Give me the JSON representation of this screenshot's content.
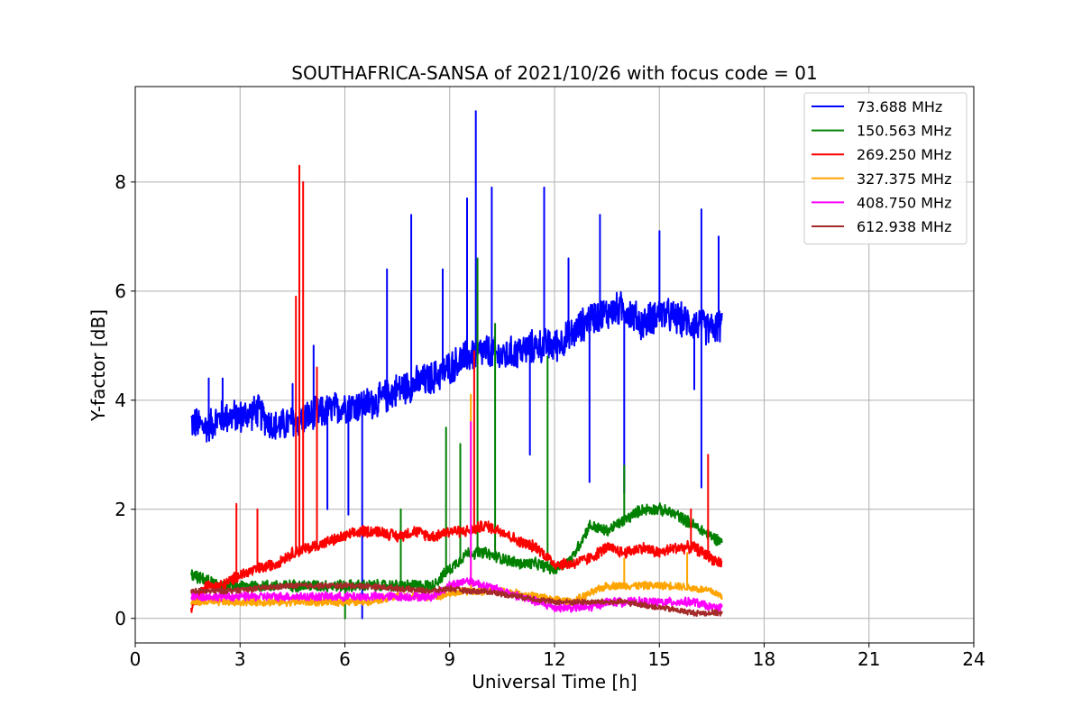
{
  "chart_data": {
    "type": "line",
    "title": "SOUTHAFRICA-SANSA of 2021/10/26 with focus code = 01",
    "xlabel": "Universal Time [h]",
    "ylabel": "Y-factor [dB]",
    "xlim": [
      0,
      24
    ],
    "ylim": [
      -0.45,
      9.75
    ],
    "xticks": [
      0,
      3,
      6,
      9,
      12,
      15,
      18,
      21,
      24
    ],
    "yticks": [
      0,
      2,
      4,
      6,
      8
    ],
    "grid": true,
    "legend_position": "top-right",
    "series": [
      {
        "name": "  73.688 MHz",
        "color": "#0000ff",
        "points": [
          [
            1.6,
            3.6
          ],
          [
            2.0,
            3.5
          ],
          [
            2.5,
            3.7
          ],
          [
            3.0,
            3.7
          ],
          [
            3.5,
            3.8
          ],
          [
            4.0,
            3.5
          ],
          [
            4.5,
            3.6
          ],
          [
            5.0,
            3.7
          ],
          [
            5.5,
            3.8
          ],
          [
            6.0,
            3.9
          ],
          [
            6.5,
            3.9
          ],
          [
            7.0,
            4.0
          ],
          [
            7.5,
            4.2
          ],
          [
            8.0,
            4.3
          ],
          [
            8.5,
            4.4
          ],
          [
            9.0,
            4.6
          ],
          [
            9.5,
            4.8
          ],
          [
            10.0,
            4.9
          ],
          [
            10.5,
            4.8
          ],
          [
            11.0,
            4.9
          ],
          [
            11.5,
            5.0
          ],
          [
            12.0,
            5.0
          ],
          [
            12.5,
            5.2
          ],
          [
            13.0,
            5.5
          ],
          [
            13.5,
            5.6
          ],
          [
            14.0,
            5.7
          ],
          [
            14.5,
            5.4
          ],
          [
            15.0,
            5.6
          ],
          [
            15.5,
            5.5
          ],
          [
            16.0,
            5.4
          ],
          [
            16.5,
            5.3
          ],
          [
            16.8,
            5.4
          ]
        ],
        "spikes": [
          [
            2.1,
            4.4
          ],
          [
            2.5,
            4.4
          ],
          [
            4.5,
            4.3
          ],
          [
            5.1,
            5.0
          ],
          [
            5.5,
            2.0
          ],
          [
            6.1,
            1.9
          ],
          [
            6.5,
            0.0
          ],
          [
            7.2,
            6.4
          ],
          [
            7.9,
            7.4
          ],
          [
            8.8,
            6.4
          ],
          [
            9.5,
            7.7
          ],
          [
            9.75,
            9.3
          ],
          [
            10.2,
            7.9
          ],
          [
            11.3,
            3.0
          ],
          [
            11.7,
            7.9
          ],
          [
            12.4,
            6.6
          ],
          [
            13.0,
            2.5
          ],
          [
            13.3,
            7.4
          ],
          [
            14.0,
            2.3
          ],
          [
            15.0,
            7.1
          ],
          [
            16.0,
            4.2
          ],
          [
            16.2,
            7.5
          ],
          [
            16.2,
            2.4
          ],
          [
            16.7,
            7.0
          ]
        ]
      },
      {
        "name": "150.563 MHz",
        "color": "#008000",
        "points": [
          [
            1.6,
            0.8
          ],
          [
            2.0,
            0.7
          ],
          [
            2.5,
            0.6
          ],
          [
            3.0,
            0.6
          ],
          [
            3.5,
            0.6
          ],
          [
            4.0,
            0.6
          ],
          [
            4.5,
            0.6
          ],
          [
            5.0,
            0.6
          ],
          [
            5.5,
            0.6
          ],
          [
            6.0,
            0.6
          ],
          [
            6.5,
            0.6
          ],
          [
            7.0,
            0.6
          ],
          [
            7.5,
            0.6
          ],
          [
            8.0,
            0.6
          ],
          [
            8.5,
            0.6
          ],
          [
            9.0,
            0.9
          ],
          [
            9.5,
            1.2
          ],
          [
            10.0,
            1.2
          ],
          [
            10.5,
            1.1
          ],
          [
            11.0,
            1.0
          ],
          [
            11.5,
            1.0
          ],
          [
            12.0,
            0.9
          ],
          [
            12.5,
            1.1
          ],
          [
            13.0,
            1.7
          ],
          [
            13.5,
            1.6
          ],
          [
            14.0,
            1.8
          ],
          [
            14.5,
            2.0
          ],
          [
            15.0,
            2.0
          ],
          [
            15.5,
            1.9
          ],
          [
            16.0,
            1.7
          ],
          [
            16.5,
            1.5
          ],
          [
            16.8,
            1.4
          ]
        ],
        "spikes": [
          [
            6.0,
            0.0
          ],
          [
            7.6,
            2.0
          ],
          [
            8.9,
            3.5
          ],
          [
            9.3,
            3.2
          ],
          [
            9.8,
            6.6
          ],
          [
            10.3,
            5.4
          ],
          [
            11.8,
            4.8
          ],
          [
            14.0,
            2.8
          ]
        ]
      },
      {
        "name": "269.250 MHz",
        "color": "#ff0000",
        "points": [
          [
            1.6,
            0.2
          ],
          [
            2.0,
            0.6
          ],
          [
            2.5,
            0.6
          ],
          [
            3.0,
            0.8
          ],
          [
            3.5,
            0.9
          ],
          [
            4.0,
            1.0
          ],
          [
            4.5,
            1.2
          ],
          [
            5.0,
            1.3
          ],
          [
            5.5,
            1.4
          ],
          [
            6.0,
            1.5
          ],
          [
            6.5,
            1.6
          ],
          [
            7.0,
            1.6
          ],
          [
            7.5,
            1.5
          ],
          [
            8.0,
            1.6
          ],
          [
            8.5,
            1.5
          ],
          [
            9.0,
            1.6
          ],
          [
            9.5,
            1.6
          ],
          [
            10.0,
            1.7
          ],
          [
            10.5,
            1.6
          ],
          [
            11.0,
            1.4
          ],
          [
            11.5,
            1.3
          ],
          [
            12.0,
            1.0
          ],
          [
            12.5,
            1.0
          ],
          [
            13.0,
            1.1
          ],
          [
            13.5,
            1.3
          ],
          [
            14.0,
            1.2
          ],
          [
            14.5,
            1.3
          ],
          [
            15.0,
            1.2
          ],
          [
            15.5,
            1.3
          ],
          [
            16.0,
            1.3
          ],
          [
            16.5,
            1.1
          ],
          [
            16.8,
            1.0
          ]
        ],
        "spikes": [
          [
            2.9,
            2.1
          ],
          [
            3.5,
            2.0
          ],
          [
            4.6,
            5.9
          ],
          [
            4.7,
            8.3
          ],
          [
            4.8,
            8.0
          ],
          [
            5.2,
            4.6
          ],
          [
            9.7,
            4.9
          ],
          [
            15.9,
            2.0
          ],
          [
            16.4,
            3.0
          ]
        ]
      },
      {
        "name": "327.375 MHz",
        "color": "#ffa500",
        "points": [
          [
            1.6,
            0.3
          ],
          [
            2.5,
            0.3
          ],
          [
            3.5,
            0.3
          ],
          [
            4.5,
            0.3
          ],
          [
            5.5,
            0.3
          ],
          [
            6.5,
            0.3
          ],
          [
            7.5,
            0.4
          ],
          [
            8.5,
            0.4
          ],
          [
            9.5,
            0.5
          ],
          [
            10.5,
            0.5
          ],
          [
            11.5,
            0.4
          ],
          [
            12.5,
            0.3
          ],
          [
            13.5,
            0.6
          ],
          [
            14.5,
            0.6
          ],
          [
            15.5,
            0.6
          ],
          [
            16.5,
            0.5
          ],
          [
            16.8,
            0.4
          ]
        ],
        "spikes": [
          [
            9.6,
            4.1
          ],
          [
            14.0,
            1.1
          ],
          [
            15.8,
            1.2
          ]
        ]
      },
      {
        "name": "408.750 MHz",
        "color": "#ff00ff",
        "points": [
          [
            1.6,
            0.4
          ],
          [
            2.5,
            0.4
          ],
          [
            3.5,
            0.4
          ],
          [
            4.5,
            0.4
          ],
          [
            5.5,
            0.4
          ],
          [
            6.5,
            0.4
          ],
          [
            7.5,
            0.4
          ],
          [
            8.5,
            0.4
          ],
          [
            9.0,
            0.6
          ],
          [
            9.5,
            0.7
          ],
          [
            10.0,
            0.6
          ],
          [
            10.5,
            0.5
          ],
          [
            11.0,
            0.4
          ],
          [
            11.5,
            0.3
          ],
          [
            12.0,
            0.2
          ],
          [
            12.5,
            0.2
          ],
          [
            13.0,
            0.2
          ],
          [
            13.5,
            0.3
          ],
          [
            14.0,
            0.3
          ],
          [
            14.5,
            0.3
          ],
          [
            15.0,
            0.3
          ],
          [
            15.5,
            0.3
          ],
          [
            16.0,
            0.3
          ],
          [
            16.5,
            0.2
          ],
          [
            16.8,
            0.2
          ]
        ],
        "spikes": [
          [
            9.6,
            3.6
          ]
        ]
      },
      {
        "name": "612.938 MHz",
        "color": "#a52a2a",
        "points": [
          [
            1.6,
            0.5
          ],
          [
            2.5,
            0.5
          ],
          [
            3.5,
            0.55
          ],
          [
            4.5,
            0.6
          ],
          [
            5.5,
            0.6
          ],
          [
            6.5,
            0.6
          ],
          [
            7.5,
            0.55
          ],
          [
            8.5,
            0.5
          ],
          [
            9.0,
            0.55
          ],
          [
            9.5,
            0.5
          ],
          [
            10.0,
            0.5
          ],
          [
            10.5,
            0.45
          ],
          [
            11.0,
            0.4
          ],
          [
            11.5,
            0.35
          ],
          [
            12.0,
            0.3
          ],
          [
            12.5,
            0.3
          ],
          [
            13.0,
            0.3
          ],
          [
            13.5,
            0.3
          ],
          [
            14.0,
            0.3
          ],
          [
            14.5,
            0.25
          ],
          [
            15.0,
            0.2
          ],
          [
            15.5,
            0.15
          ],
          [
            16.0,
            0.1
          ],
          [
            16.5,
            0.1
          ],
          [
            16.8,
            0.1
          ]
        ],
        "spikes": []
      }
    ]
  }
}
